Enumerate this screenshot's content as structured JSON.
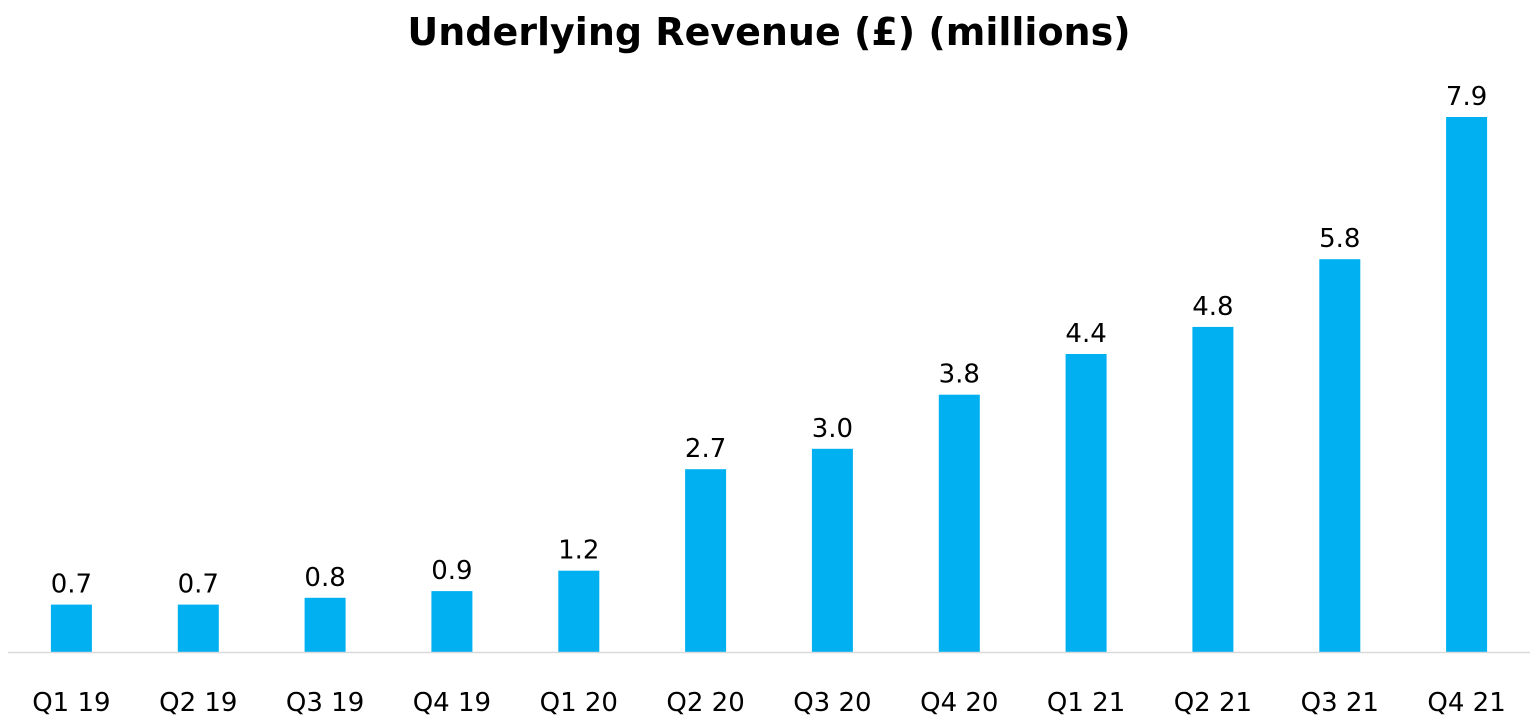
{
  "chart_data": {
    "type": "bar",
    "title": "Underlying Revenue (£) (millions)",
    "xlabel": "",
    "ylabel": "",
    "categories": [
      "Q1 19",
      "Q2 19",
      "Q3 19",
      "Q4 19",
      "Q1 20",
      "Q2 20",
      "Q3 20",
      "Q4 20",
      "Q1 21",
      "Q2 21",
      "Q3 21",
      "Q4 21"
    ],
    "values": [
      0.7,
      0.7,
      0.8,
      0.9,
      1.2,
      2.7,
      3.0,
      3.8,
      4.4,
      4.8,
      5.8,
      7.9
    ],
    "value_labels": [
      "0.7",
      "0.7",
      "0.8",
      "0.9",
      "1.2",
      "2.7",
      "3.0",
      "3.8",
      "4.4",
      "4.8",
      "5.8",
      "7.9"
    ],
    "ylim": [
      0,
      7.9
    ],
    "grid": false,
    "legend": "none",
    "bar_color": "#00B0F0",
    "axis_color": "#D9D9D9"
  }
}
